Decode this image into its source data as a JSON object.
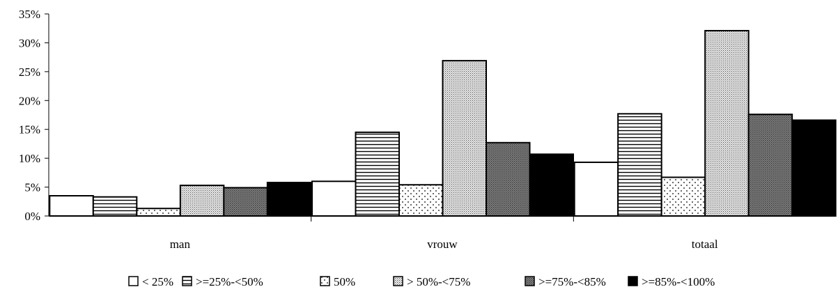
{
  "chart_data": {
    "type": "bar",
    "categories": [
      "man",
      "vrouw",
      "totaal"
    ],
    "ylim": [
      0,
      35
    ],
    "yticks": [
      0,
      5,
      10,
      15,
      20,
      25,
      30,
      35
    ],
    "ytick_labels": [
      "0%",
      "5%",
      "10%",
      "15%",
      "20%",
      "25%",
      "30%",
      "35%"
    ],
    "grid": false,
    "legend_position": "bottom",
    "series": [
      {
        "name": "< 25%",
        "pattern": "white",
        "values": [
          3.5,
          6.0,
          9.3
        ]
      },
      {
        "name": ">=25%-<50%",
        "pattern": "hlines",
        "values": [
          3.3,
          14.5,
          17.7
        ]
      },
      {
        "name": "50%",
        "pattern": "sparse-dots",
        "values": [
          1.3,
          5.4,
          6.7
        ]
      },
      {
        "name": "> 50%-<75%",
        "pattern": "dense-dots",
        "values": [
          5.3,
          26.9,
          32.1
        ]
      },
      {
        "name": ">=75%-<85%",
        "pattern": "dark-grid",
        "values": [
          4.9,
          12.7,
          17.6
        ]
      },
      {
        "name": ">=85%-<100%",
        "pattern": "black",
        "values": [
          5.8,
          10.7,
          16.6
        ]
      }
    ]
  }
}
